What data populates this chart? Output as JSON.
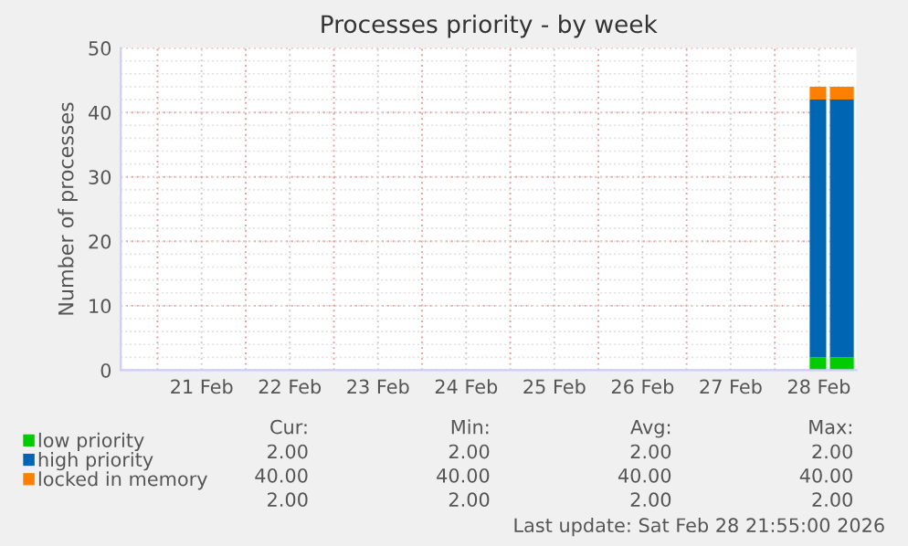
{
  "chart_data": {
    "type": "area",
    "stacked": true,
    "title": "Processes priority - by week",
    "ylabel": "Number of processes",
    "x": [
      "2026-02-28T09:30",
      "2026-02-28T14:00",
      "2026-02-28T14:30",
      "2026-02-28T15:00",
      "2026-02-28T21:30"
    ],
    "series": [
      {
        "name": "low priority",
        "color": "#00cc00",
        "values": [
          2,
          2,
          null,
          2,
          2
        ]
      },
      {
        "name": "high priority",
        "color": "#0066b3",
        "values": [
          40,
          40,
          null,
          40,
          40
        ]
      },
      {
        "name": "locked in memory",
        "color": "#ff8000",
        "values": [
          2,
          2,
          null,
          2,
          2
        ]
      }
    ],
    "xlim": [
      "2026-02-20T14:00",
      "2026-02-28T22:10"
    ],
    "xticks": [
      {
        "value": "2026-02-21T00:00",
        "label": null
      },
      {
        "value": "2026-02-21T12:00",
        "label": "21 Feb"
      },
      {
        "value": "2026-02-22T00:00",
        "label": null
      },
      {
        "value": "2026-02-22T12:00",
        "label": "22 Feb"
      },
      {
        "value": "2026-02-23T00:00",
        "label": null
      },
      {
        "value": "2026-02-23T12:00",
        "label": "23 Feb"
      },
      {
        "value": "2026-02-24T00:00",
        "label": null
      },
      {
        "value": "2026-02-24T12:00",
        "label": "24 Feb"
      },
      {
        "value": "2026-02-25T00:00",
        "label": null
      },
      {
        "value": "2026-02-25T12:00",
        "label": "25 Feb"
      },
      {
        "value": "2026-02-26T00:00",
        "label": null
      },
      {
        "value": "2026-02-26T12:00",
        "label": "26 Feb"
      },
      {
        "value": "2026-02-27T00:00",
        "label": null
      },
      {
        "value": "2026-02-27T12:00",
        "label": "27 Feb"
      },
      {
        "value": "2026-02-28T00:00",
        "label": null
      },
      {
        "value": "2026-02-28T12:00",
        "label": "28 Feb"
      }
    ],
    "ylim": [
      0,
      50
    ],
    "yticks": [
      0,
      10,
      20,
      30,
      40,
      50
    ],
    "grid": true,
    "legend": "bottom left",
    "annotations": [
      "Cur:",
      "Min:",
      "Avg:",
      "Max:",
      "2.00",
      "2.00",
      "2.00",
      "2.00",
      "40.00",
      "40.00",
      "40.00",
      "40.00",
      "2.00",
      "2.00",
      "2.00",
      "2.00",
      "Last update: Sat Feb 28 21:55:00 2026"
    ]
  }
}
